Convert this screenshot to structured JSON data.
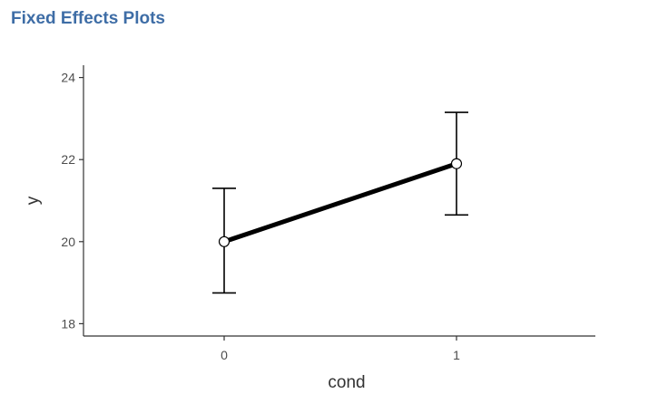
{
  "header": {
    "title": "Fixed Effects Plots"
  },
  "chart_data": {
    "type": "line",
    "title": "",
    "xlabel": "cond",
    "ylabel": "y",
    "categories": [
      "0",
      "1"
    ],
    "series": [
      {
        "values": [
          20.0,
          21.9
        ],
        "ci_lower": [
          18.75,
          20.65
        ],
        "ci_upper": [
          21.3,
          23.15
        ]
      }
    ],
    "y_ticks": [
      "18",
      "20",
      "22",
      "24"
    ],
    "ylim": [
      17.7,
      24.3
    ],
    "grid": false,
    "legend": "none",
    "colors": {
      "line": "#000000",
      "point_fill": "#ffffff",
      "axis": "#333333"
    }
  }
}
